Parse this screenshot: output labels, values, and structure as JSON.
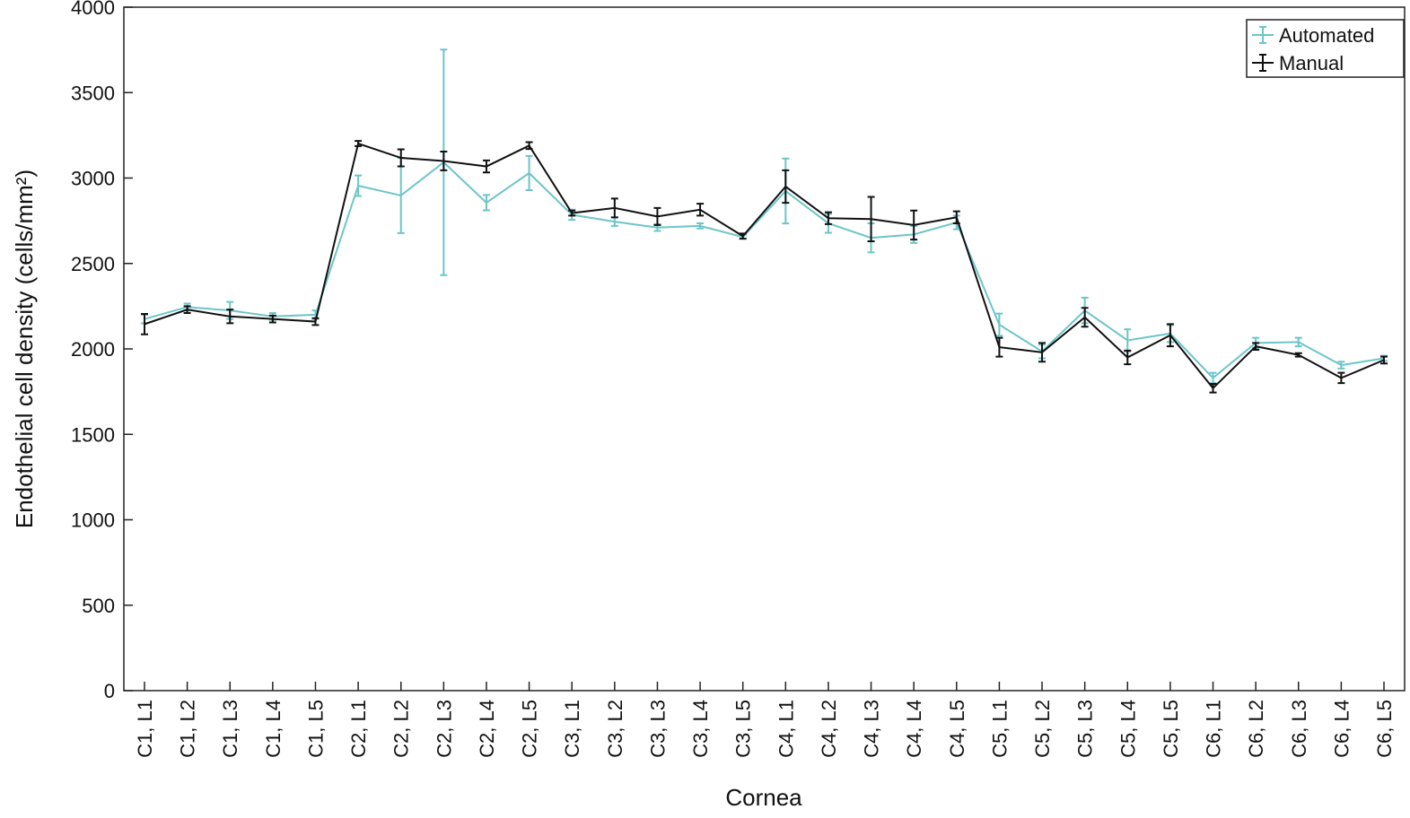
{
  "chart_data": {
    "type": "line",
    "x_label": "Cornea",
    "y_label": "Endothelial cell density (cells/mm²)",
    "categories": [
      "C1, L1",
      "C1, L2",
      "C1, L3",
      "C1, L4",
      "C1, L5",
      "C2, L1",
      "C2, L2",
      "C2, L3",
      "C2, L4",
      "C2, L5",
      "C3, L1",
      "C3, L2",
      "C3, L3",
      "C3, L4",
      "C3, L5",
      "C4, L1",
      "C4, L2",
      "C4, L3",
      "C4, L4",
      "C4, L5",
      "C5, L1",
      "C5, L2",
      "C5, L3",
      "C5, L4",
      "C5, L5",
      "C6, L1",
      "C6, L2",
      "C6, L3",
      "C6, L4",
      "C6, L5"
    ],
    "series": [
      {
        "name": "Automated",
        "color": "#6cc5c9",
        "values": [
          2175,
          2245,
          2225,
          2190,
          2200,
          2955,
          2898,
          3092,
          2856,
          3029,
          2785,
          2745,
          2710,
          2720,
          2655,
          2924,
          2735,
          2650,
          2670,
          2740,
          2142,
          1985,
          2225,
          2050,
          2090,
          1830,
          2035,
          2040,
          1905,
          1945
        ],
        "errors": [
          25,
          20,
          50,
          20,
          25,
          60,
          220,
          660,
          45,
          100,
          30,
          25,
          20,
          15,
          10,
          190,
          55,
          85,
          50,
          40,
          65,
          40,
          75,
          65,
          50,
          30,
          30,
          25,
          20,
          15
        ]
      },
      {
        "name": "Manual",
        "color": "#111111",
        "values": [
          2145,
          2230,
          2190,
          2175,
          2160,
          3202,
          3118,
          3100,
          3068,
          3190,
          2795,
          2825,
          2775,
          2815,
          2660,
          2950,
          2765,
          2760,
          2725,
          2770,
          2010,
          1980,
          2185,
          1950,
          2080,
          1770,
          2015,
          1965,
          1830,
          1935
        ],
        "errors": [
          60,
          20,
          40,
          20,
          20,
          15,
          50,
          55,
          35,
          20,
          15,
          55,
          50,
          35,
          15,
          95,
          35,
          130,
          85,
          35,
          55,
          55,
          55,
          40,
          65,
          25,
          20,
          10,
          30,
          20
        ]
      }
    ],
    "ylim": [
      0,
      4000
    ],
    "yticks": [
      0,
      500,
      1000,
      1500,
      2000,
      2500,
      3000,
      3500,
      4000
    ],
    "legend": "northeast"
  }
}
